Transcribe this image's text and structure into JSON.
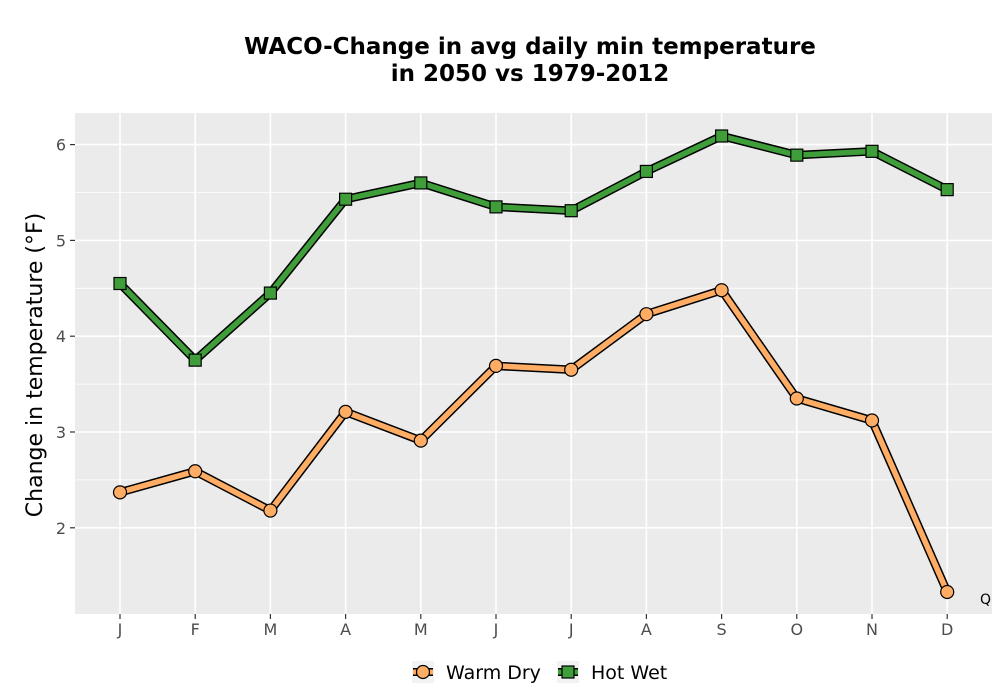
{
  "chart_data": {
    "type": "line",
    "title_lines": [
      "WACO-Change in avg daily min temperature",
      "in 2050 vs 1979-2012"
    ],
    "xlabel": "",
    "ylabel": "Change in temperature (°F)",
    "categories": [
      "J",
      "F",
      "M",
      "A",
      "M",
      "J",
      "J",
      "A",
      "S",
      "O",
      "N",
      "D"
    ],
    "y_ticks": [
      2,
      3,
      4,
      5,
      6
    ],
    "ylim": [
      1.1,
      6.33
    ],
    "grid": true,
    "legend_position": "bottom",
    "corner_text": "Q",
    "series": [
      {
        "name": "Warm Dry",
        "marker": "circle",
        "color": "#ffad65",
        "values": [
          2.37,
          2.59,
          2.18,
          3.21,
          2.91,
          3.69,
          3.65,
          4.23,
          4.48,
          3.35,
          3.12,
          1.33
        ]
      },
      {
        "name": "Hot Wet",
        "marker": "square",
        "color": "#3f9e3a",
        "values": [
          4.55,
          3.75,
          4.45,
          5.43,
          5.6,
          5.35,
          5.31,
          5.72,
          6.09,
          5.89,
          5.93,
          5.53
        ]
      }
    ]
  }
}
